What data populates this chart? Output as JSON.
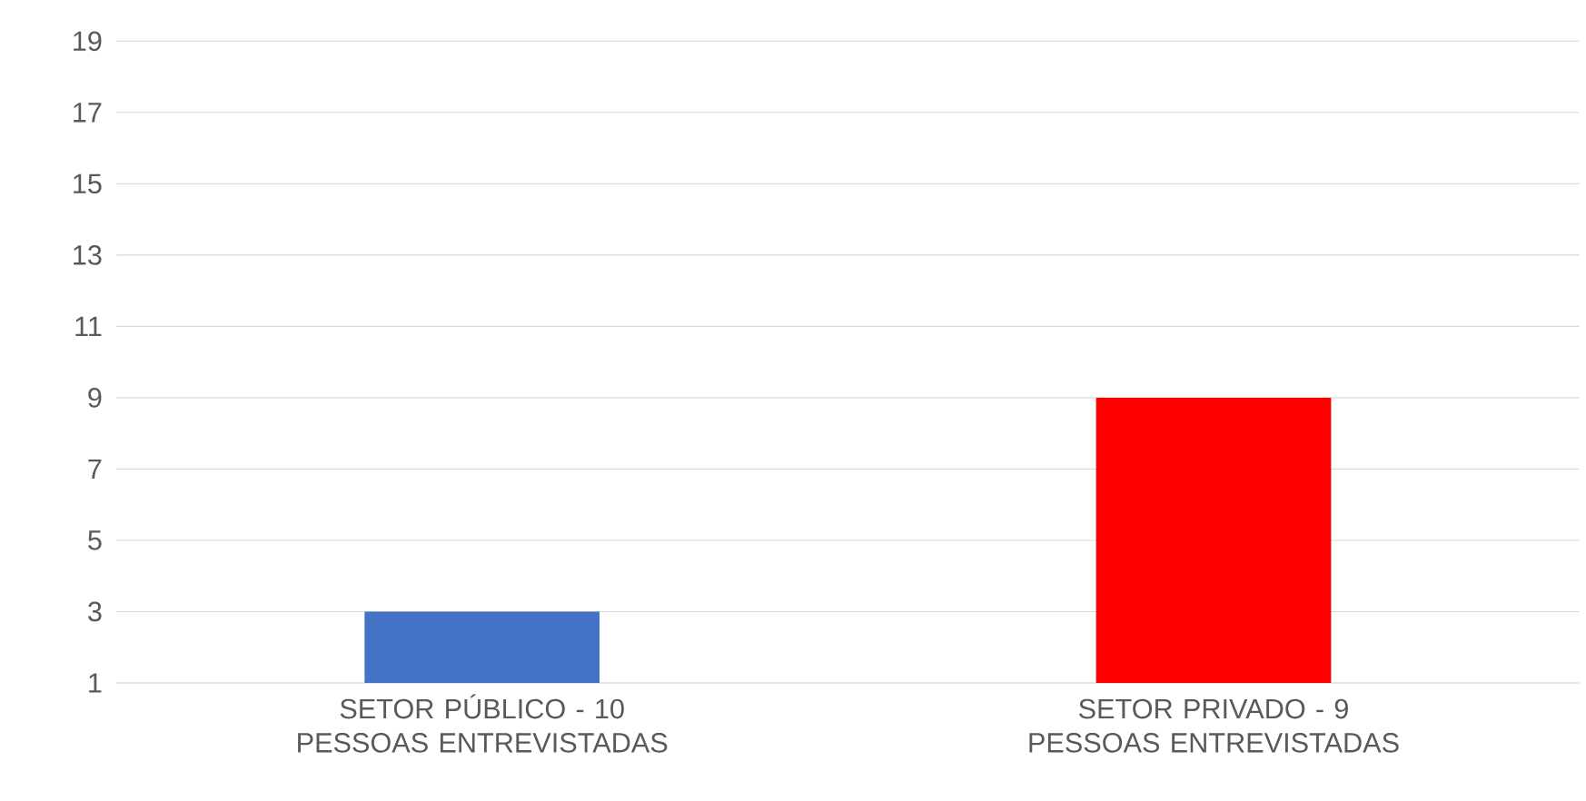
{
  "chart_data": {
    "type": "bar",
    "categories": [
      "SETOR PÚBLICO - 10 PESSOAS ENTREVISTADAS",
      "SETOR PRIVADO - 9 PESSOAS ENTREVISTADAS"
    ],
    "values": [
      3,
      9
    ],
    "colors": [
      "#4472c4",
      "#ff0000"
    ],
    "ylim": [
      1,
      19
    ],
    "yticks": [
      1,
      3,
      5,
      7,
      9,
      11,
      13,
      15,
      17,
      19
    ],
    "grid": "y"
  }
}
